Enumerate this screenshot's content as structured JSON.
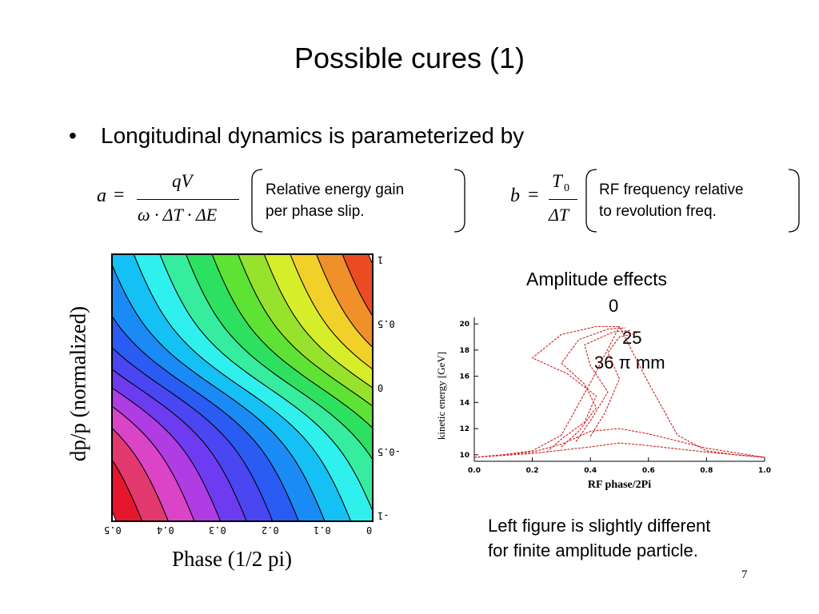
{
  "slide": {
    "title": "Possible cures (1)",
    "bullet": "Longitudinal dynamics is parameterized by",
    "page_number": "7"
  },
  "formula_a": {
    "lhs": "a",
    "eq": "=",
    "numerator": "qV",
    "denominator": "ω · ΔT · ΔE",
    "description": "Relative energy gain\nper phase slip."
  },
  "formula_b": {
    "lhs": "b",
    "eq": "=",
    "numerator_main": "T",
    "numerator_sub": "0",
    "denominator": "ΔT",
    "description": "RF frequency relative\nto revolution freq."
  },
  "left_figure": {
    "xlabel": "Phase (1/2 pi)",
    "ylabel": "dp/p (normalized)",
    "x_ticks": [
      "0.5",
      "0.4",
      "0.3",
      "0.2",
      "0.1",
      "0"
    ],
    "y_ticks": [
      "1",
      "0.5",
      "0",
      "-0.5",
      "-1"
    ],
    "band_colors": [
      "#e6162e",
      "#e23a6e",
      "#dc44c8",
      "#b03ce4",
      "#6e3cf0",
      "#4a46f2",
      "#2a5cf4",
      "#1a8af4",
      "#14c0f4",
      "#30f0ee",
      "#36ec9e",
      "#2ee060",
      "#5ee234",
      "#96e22c",
      "#d6ee2a",
      "#f2d02a",
      "#f0902a",
      "#ec4a22"
    ]
  },
  "right_figure": {
    "title": "Amplitude effects",
    "amp_labels": [
      "0",
      "25",
      "36 π mm"
    ],
    "xlabel": "RF phase/2Pi",
    "ylabel": "kinetic energy [GeV]",
    "x_ticks": [
      "0.0",
      "0.2",
      "0.4",
      "0.6",
      "0.8",
      "1.0"
    ],
    "y_ticks": [
      "20",
      "18",
      "16",
      "14",
      "12",
      "10"
    ],
    "curve_color": "#cc2222"
  },
  "chart_data": {
    "type": "line",
    "title": "Amplitude effects",
    "xlabel": "RF phase/2Pi",
    "ylabel": "kinetic energy [GeV]",
    "xlim": [
      0.0,
      1.0
    ],
    "ylim": [
      9.5,
      20.5
    ],
    "series": [
      {
        "name": "0",
        "x": [
          0.0,
          0.1,
          0.2,
          0.3,
          0.4,
          0.5,
          0.6,
          0.7,
          0.8,
          0.9,
          1.0
        ],
        "y": [
          9.8,
          10.0,
          10.3,
          11.5,
          15.5,
          19.8,
          15.5,
          11.5,
          10.3,
          10.0,
          9.8
        ]
      },
      {
        "name": "25",
        "x": [
          0.0,
          0.2,
          0.3,
          0.4,
          0.5,
          0.6,
          0.8,
          1.0
        ],
        "y": [
          9.8,
          10.2,
          10.8,
          11.8,
          12.0,
          11.6,
          10.5,
          9.8
        ]
      },
      {
        "name": "36 π mm",
        "x": [
          0.0,
          0.2,
          0.4,
          0.5,
          0.6,
          0.8,
          1.0
        ],
        "y": [
          9.8,
          10.1,
          10.6,
          10.9,
          10.7,
          10.2,
          9.8
        ]
      }
    ]
  }
}
